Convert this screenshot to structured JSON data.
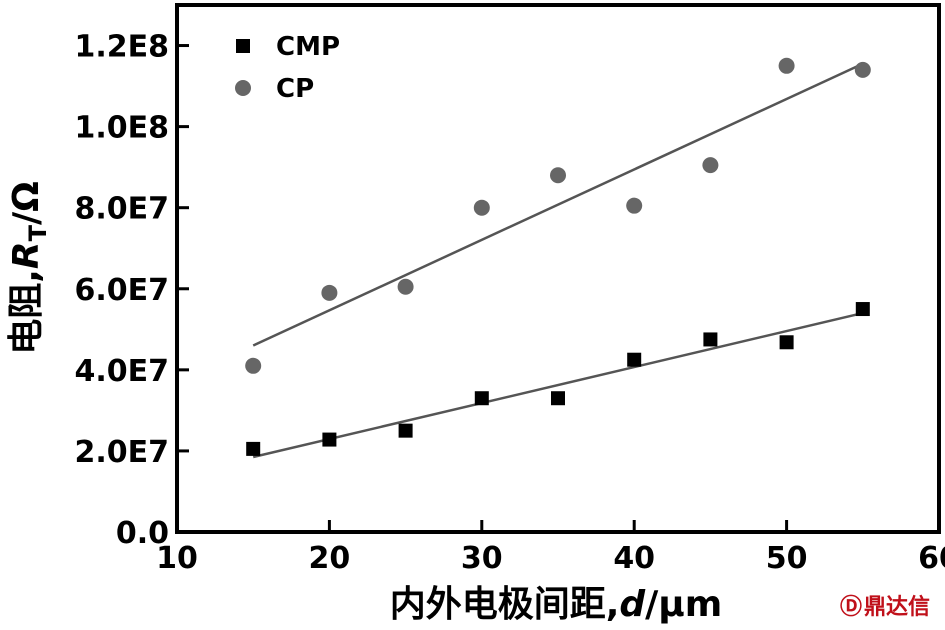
{
  "chart_data": {
    "type": "scatter",
    "xlabel": {
      "prefix": "内外电极间距,",
      "var": "d",
      "unit": "/μm"
    },
    "ylabel": {
      "prefix": "电阻,",
      "var": "R",
      "sub": "T",
      "unit": "/Ω"
    },
    "xlim": [
      10,
      60
    ],
    "ylim": [
      0,
      130000000
    ],
    "xticks": [
      10,
      20,
      30,
      40,
      50,
      60
    ],
    "xtick_labels": [
      "10",
      "20",
      "30",
      "40",
      "50",
      "60"
    ],
    "yticks": [
      0,
      20000000,
      40000000,
      60000000,
      80000000,
      100000000,
      120000000
    ],
    "ytick_labels": [
      "0.0",
      "2.0E7",
      "4.0E7",
      "6.0E7",
      "8.0E7",
      "1.0E8",
      "1.2E8"
    ],
    "grid": false,
    "legend_position": "top-left",
    "series": [
      {
        "name": "CMP",
        "marker": "square",
        "color": "#000000",
        "x": [
          15,
          20,
          25,
          30,
          35,
          40,
          45,
          50,
          55
        ],
        "y": [
          20500000,
          22800000,
          25000000,
          33000000,
          33000000,
          42500000,
          47500000,
          46800000,
          55000000
        ],
        "fit": {
          "x": [
            15,
            55
          ],
          "y": [
            18500000,
            54000000
          ],
          "color": "#555555"
        }
      },
      {
        "name": "CP",
        "marker": "circle",
        "color": "#666666",
        "x": [
          15,
          20,
          25,
          30,
          35,
          40,
          45,
          50,
          55
        ],
        "y": [
          41000000,
          59000000,
          60500000,
          80000000,
          88000000,
          80500000,
          90500000,
          115000000,
          114000000
        ],
        "fit": {
          "x": [
            15,
            55
          ],
          "y": [
            46000000,
            115500000
          ],
          "color": "#555555"
        }
      }
    ]
  },
  "watermark": {
    "symbol": "Ⓓ",
    "text": "鼎达信"
  }
}
